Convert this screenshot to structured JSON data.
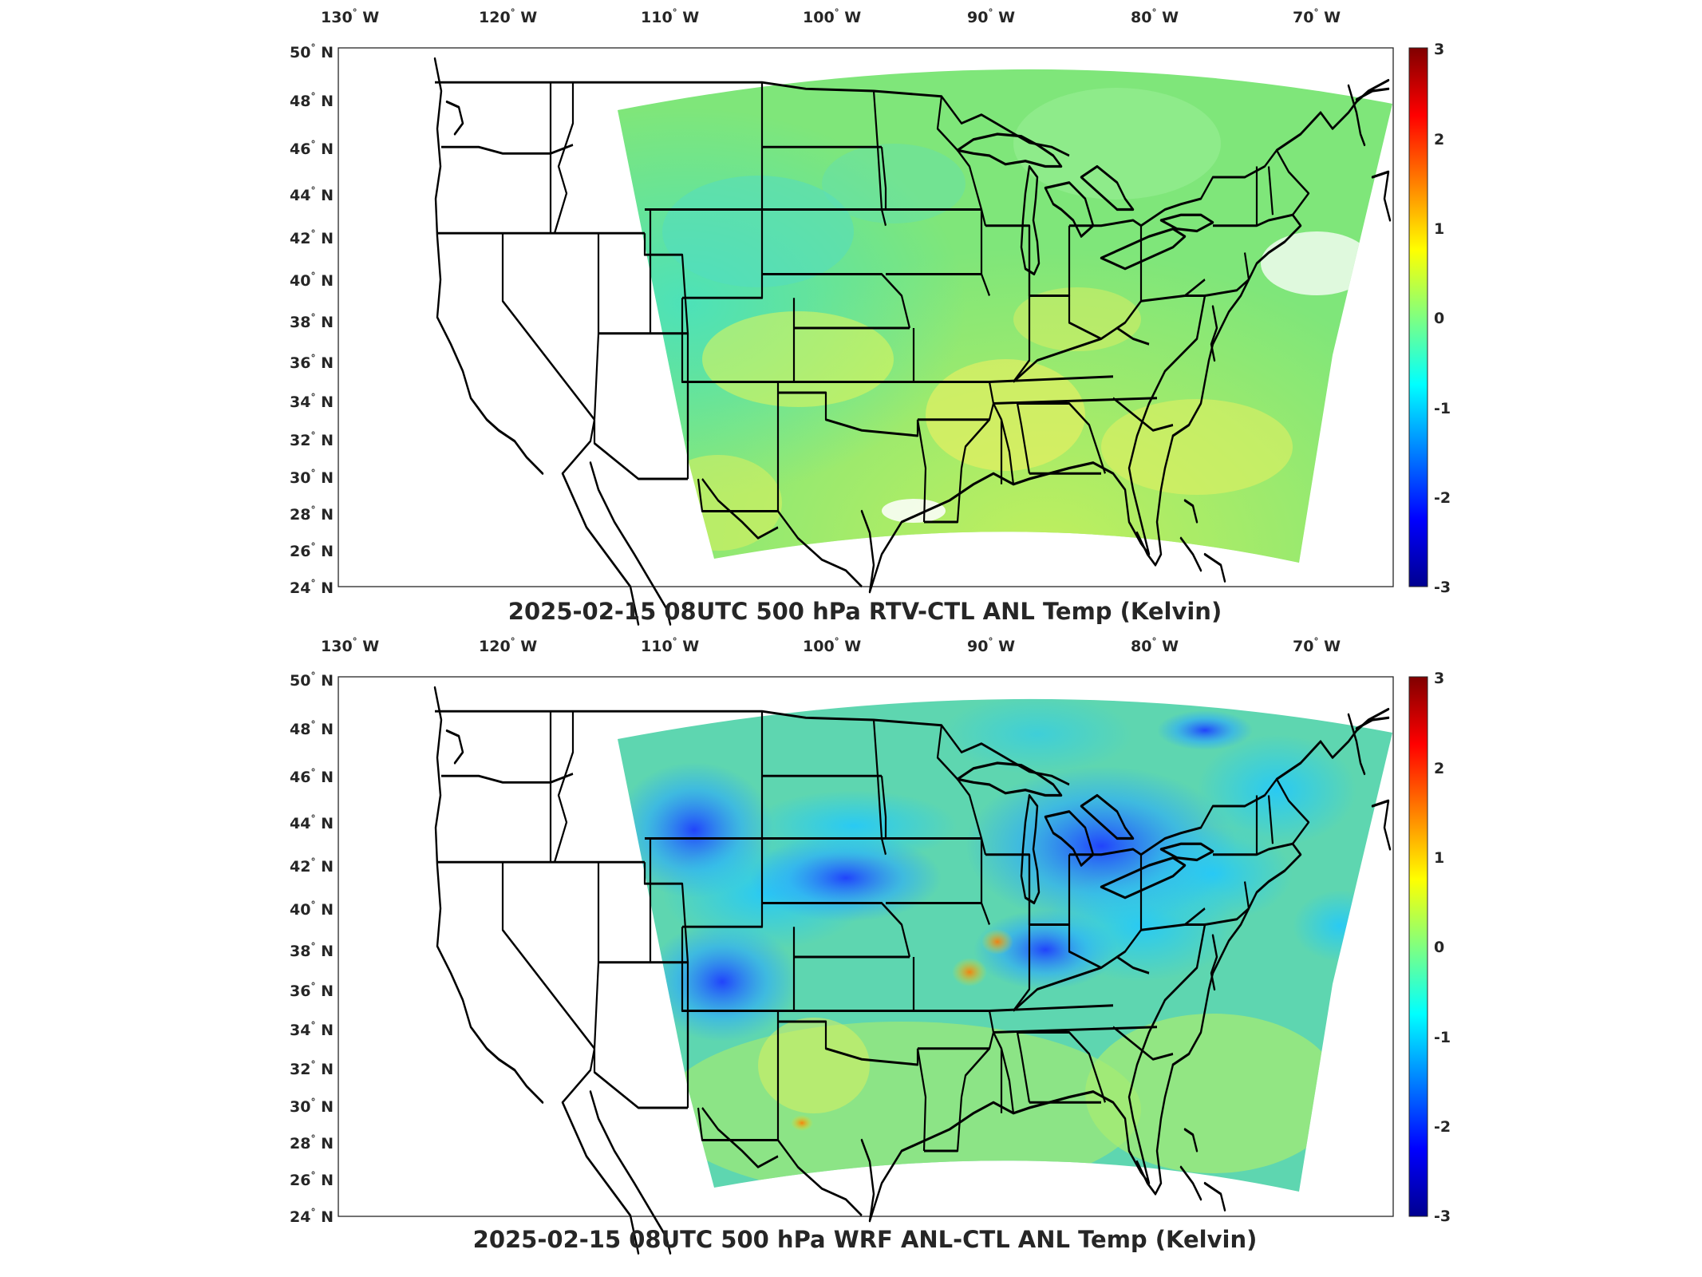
{
  "figure": {
    "lon_ticks": [
      "130",
      "120",
      "110",
      "100",
      "90",
      "80",
      "70"
    ],
    "lon_suffix": "W",
    "lat_ticks": [
      "50",
      "48",
      "46",
      "44",
      "42",
      "40",
      "38",
      "36",
      "34",
      "32",
      "30",
      "28",
      "26",
      "24"
    ],
    "lat_suffix": "N",
    "colorbar_ticks": [
      "3",
      "2",
      "1",
      "0",
      "-1",
      "-2",
      "-3"
    ],
    "colormap": "jet",
    "colorbar_range": [
      -3,
      3
    ]
  },
  "panels": [
    {
      "title": "2025-02-15 08UTC 500 hPa RTV-CTL ANL Temp (Kelvin)",
      "field_summary": "mostly near 0 K (green); slightly positive (yellow) over the southern states",
      "field_base_color": "#7fe67a"
    },
    {
      "title": "2025-02-15 08UTC 500 hPa WRF ANL-CTL ANL Temp (Kelvin)",
      "field_summary": "negative anomalies (blue) over the Rockies, central Plains and Ohio Valley; near 0 in the south",
      "field_base_color": "#5ed6b0"
    }
  ],
  "colors": {
    "colormap_stops": [
      "#00008f",
      "#0000ff",
      "#00ffff",
      "#80ff80",
      "#ffff00",
      "#ff0000",
      "#800000"
    ]
  }
}
